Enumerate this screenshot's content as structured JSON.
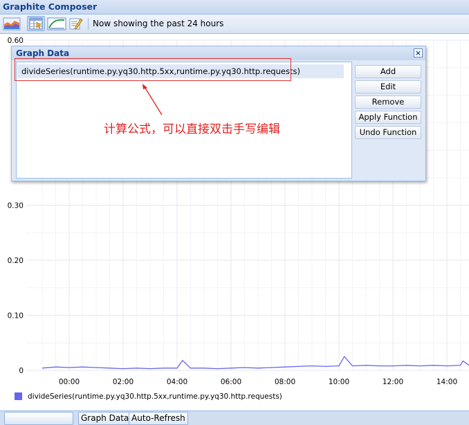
{
  "app": {
    "title": "Graphite Composer"
  },
  "toolbar": {
    "status": "Now showing the past 24 hours",
    "buttons": [
      {
        "icon": "graph-options-icon"
      },
      {
        "icon": "graph-data-icon",
        "pressed": true
      },
      {
        "icon": "date-range-icon"
      },
      {
        "icon": "edit-pencil-icon"
      }
    ]
  },
  "dialog": {
    "title": "Graph Data",
    "target": "divideSeries(runtime.py.yq30.http.5xx,runtime.py.yq30.http.requests)",
    "buttons": {
      "add": "Add",
      "edit": "Edit",
      "remove": "Remove",
      "apply": "Apply Function",
      "undo": "Undo Function"
    },
    "annotation": "计算公式，可以直接双击手写编辑"
  },
  "chart_data": {
    "type": "line",
    "y_ticks": [
      "0.60",
      "0.30",
      "0.20",
      "0.10",
      "0"
    ],
    "ylim": [
      0,
      0.6
    ],
    "x_ticks": [
      "00:00",
      "02:00",
      "04:00",
      "06:00",
      "08:00",
      "10:00",
      "12:00",
      "14:00"
    ],
    "x_hours": [
      23,
      23.5,
      24,
      24.5,
      25,
      25.5,
      26,
      26.5,
      27,
      27.5,
      28,
      28.2,
      28.5,
      29,
      29.5,
      30,
      30.5,
      31,
      31.5,
      32,
      32.5,
      33,
      33.5,
      34,
      34.2,
      34.5,
      35,
      35.5,
      36,
      36.5,
      37,
      37.5,
      38,
      38.5,
      38.6,
      39
    ],
    "values": [
      0.004,
      0.006,
      0.005,
      0.006,
      0.005,
      0.004,
      0.003,
      0.004,
      0.003,
      0.004,
      0.004,
      0.018,
      0.004,
      0.004,
      0.003,
      0.004,
      0.005,
      0.004,
      0.005,
      0.006,
      0.007,
      0.008,
      0.007,
      0.008,
      0.025,
      0.008,
      0.009,
      0.008,
      0.008,
      0.009,
      0.008,
      0.009,
      0.008,
      0.009,
      0.017,
      0.009
    ],
    "series": [
      {
        "name": "divideSeries(runtime.py.yq30.http.5xx,runtime.py.yq30.http.requests)",
        "color": "#6666ee"
      }
    ],
    "grid": true,
    "legend": "bottom-left"
  },
  "bottom": {
    "graph_data": "Graph Data",
    "auto_refresh": "Auto-Refresh"
  }
}
